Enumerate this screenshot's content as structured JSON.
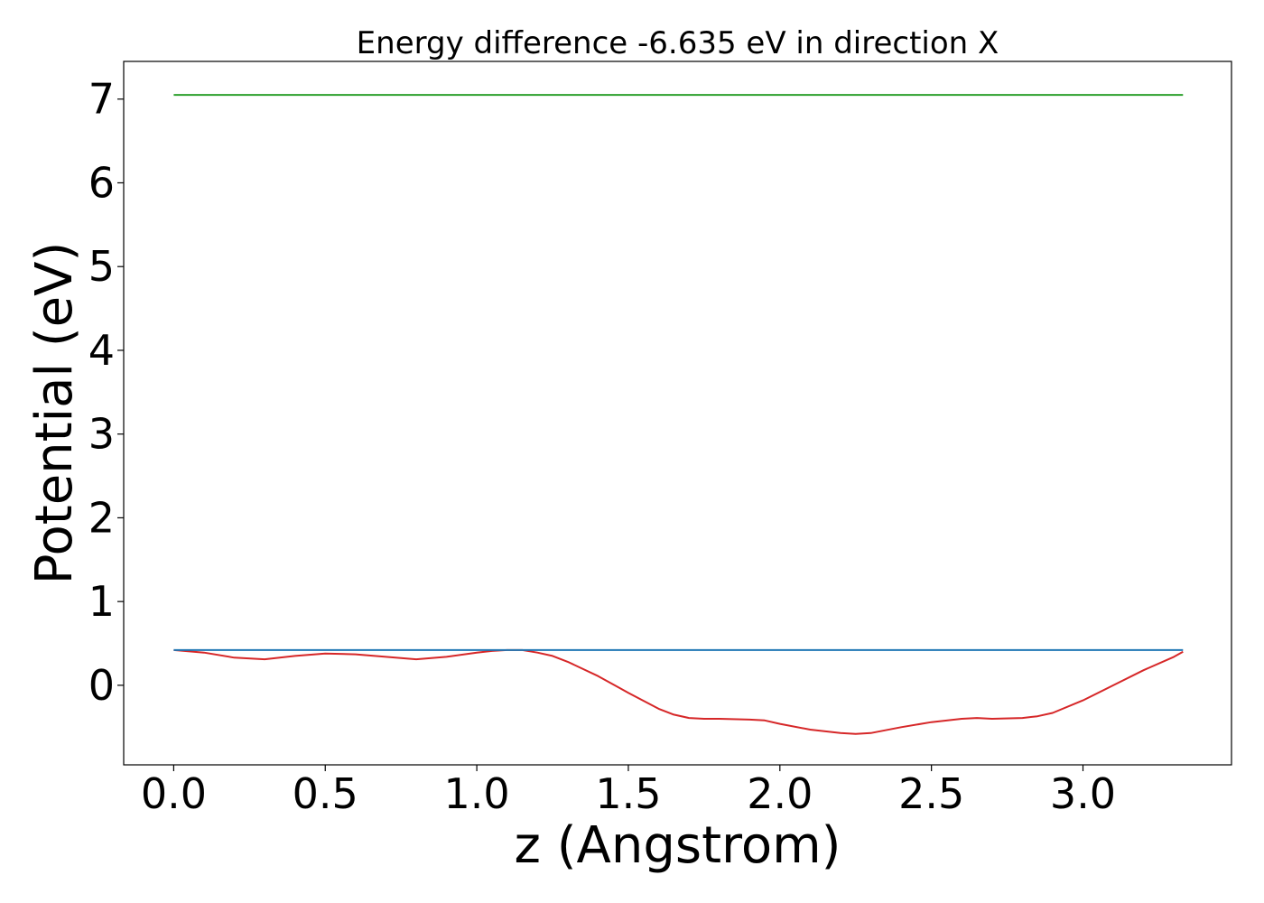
{
  "chart_data": {
    "type": "line",
    "title": "Energy difference -6.635 eV in direction X",
    "xlabel": "z (Angstrom)",
    "ylabel": "Potential (eV)",
    "xlim": [
      -0.165,
      3.49
    ],
    "ylim": [
      -0.95,
      7.45
    ],
    "x_ticks": [
      0.0,
      0.5,
      1.0,
      1.5,
      2.0,
      2.5,
      3.0
    ],
    "x_tick_labels": [
      "0.0",
      "0.5",
      "1.0",
      "1.5",
      "2.0",
      "2.5",
      "3.0"
    ],
    "y_ticks": [
      0,
      1,
      2,
      3,
      4,
      5,
      6,
      7
    ],
    "y_tick_labels": [
      "0",
      "1",
      "2",
      "3",
      "4",
      "5",
      "6",
      "7"
    ],
    "grid": false,
    "series": [
      {
        "color": "#d62728",
        "x": [
          0.0,
          0.1,
          0.2,
          0.3,
          0.4,
          0.5,
          0.6,
          0.7,
          0.8,
          0.9,
          1.0,
          1.05,
          1.1,
          1.15,
          1.2,
          1.25,
          1.3,
          1.4,
          1.5,
          1.6,
          1.65,
          1.7,
          1.75,
          1.8,
          1.9,
          1.95,
          2.0,
          2.1,
          2.2,
          2.25,
          2.3,
          2.4,
          2.5,
          2.6,
          2.65,
          2.7,
          2.8,
          2.85,
          2.9,
          3.0,
          3.1,
          3.2,
          3.3,
          3.33
        ],
        "values": [
          0.42,
          0.39,
          0.33,
          0.31,
          0.35,
          0.38,
          0.37,
          0.34,
          0.31,
          0.34,
          0.39,
          0.41,
          0.42,
          0.42,
          0.39,
          0.35,
          0.28,
          0.11,
          -0.09,
          -0.28,
          -0.35,
          -0.39,
          -0.4,
          -0.4,
          -0.41,
          -0.42,
          -0.46,
          -0.53,
          -0.57,
          -0.58,
          -0.57,
          -0.5,
          -0.44,
          -0.4,
          -0.39,
          -0.4,
          -0.39,
          -0.37,
          -0.33,
          -0.18,
          -0.0,
          0.18,
          0.34,
          0.4
        ]
      },
      {
        "color": "#1f77b4",
        "x": [
          0.0,
          3.33
        ],
        "values": [
          0.42,
          0.42
        ]
      },
      {
        "color": "#2ca02c",
        "x": [
          0.0,
          3.33
        ],
        "values": [
          7.05,
          7.05
        ]
      }
    ]
  }
}
